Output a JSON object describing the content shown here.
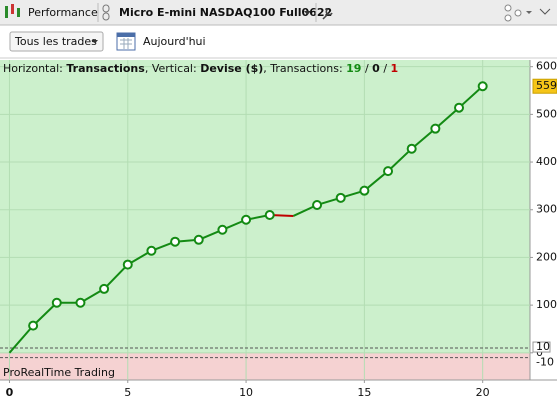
{
  "toolbar": {
    "tab": "Performance",
    "instrument": "Micro E-mini NASDAQ100 Full0622",
    "filter": "Tous les trades",
    "date": "Aujourd'hui"
  },
  "chart_data": {
    "type": "line",
    "info": {
      "h_label": "Horizontal:",
      "h_value": "Transactions",
      "v_label": "Vertical:",
      "v_value": "Devise ($)",
      "t_label": "Transactions:",
      "wins": 19,
      "neutral": 0,
      "losses": 1
    },
    "footer": "ProRealTime Trading",
    "x": [
      0,
      1,
      2,
      3,
      4,
      5,
      6,
      7,
      8,
      9,
      10,
      11,
      12,
      13,
      14,
      15,
      16,
      17,
      18,
      19,
      20
    ],
    "values": [
      0,
      57,
      105,
      105,
      134,
      185,
      214,
      233,
      237,
      258,
      279,
      289,
      287,
      310,
      325,
      340,
      381,
      428,
      470,
      514,
      559
    ],
    "color": "#138a13",
    "loss_color": "#c00000",
    "xlim": [
      -0.4,
      22
    ],
    "ylim": [
      -57,
      614
    ],
    "xticks": [
      0,
      5,
      10,
      15,
      20
    ],
    "yticks": [
      0,
      100,
      200,
      300,
      400,
      500,
      600
    ],
    "ref_lines": [
      10,
      -10
    ],
    "grid": true
  }
}
